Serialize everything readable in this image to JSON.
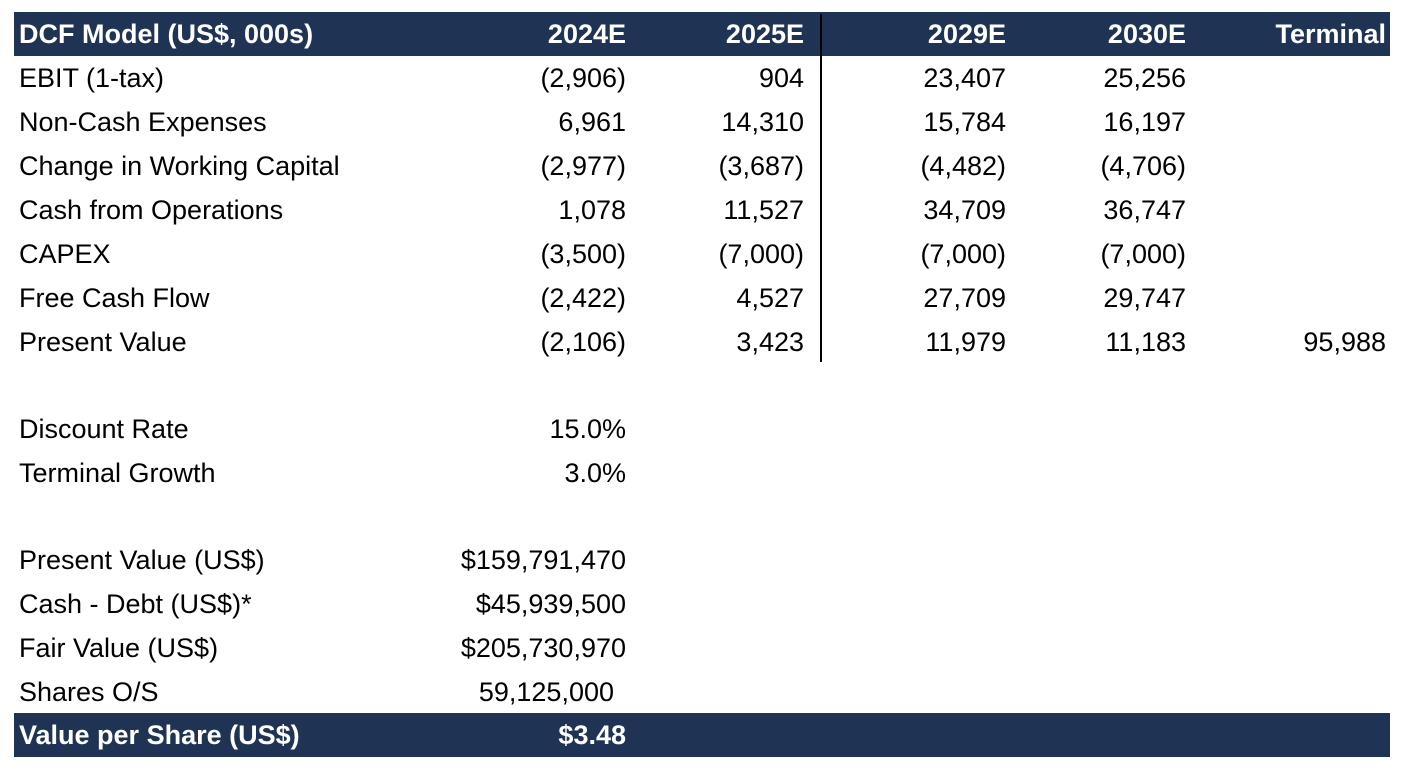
{
  "header": {
    "title": "DCF Model (US$, 000s)",
    "columns": [
      "2024E",
      "2025E",
      "2029E",
      "2030E",
      "Terminal"
    ]
  },
  "table": {
    "rows": [
      {
        "label": "EBIT (1-tax)",
        "values": [
          "(2,906)",
          "904",
          "23,407",
          "25,256",
          ""
        ]
      },
      {
        "label": "Non-Cash Expenses",
        "values": [
          "6,961",
          "14,310",
          "15,784",
          "16,197",
          ""
        ]
      },
      {
        "label": "Change in Working Capital",
        "values": [
          "(2,977)",
          "(3,687)",
          "(4,482)",
          "(4,706)",
          ""
        ]
      },
      {
        "label": "Cash from Operations",
        "values": [
          "1,078",
          "11,527",
          "34,709",
          "36,747",
          ""
        ]
      },
      {
        "label": "CAPEX",
        "values": [
          "(3,500)",
          "(7,000)",
          "(7,000)",
          "(7,000)",
          ""
        ]
      },
      {
        "label": "Free Cash Flow",
        "values": [
          "(2,422)",
          "4,527",
          "27,709",
          "29,747",
          ""
        ]
      },
      {
        "label": "Present Value",
        "values": [
          "(2,106)",
          "3,423",
          "11,979",
          "11,183",
          "95,988"
        ]
      }
    ]
  },
  "assumptions": [
    {
      "label": "Discount Rate",
      "value": "15.0%"
    },
    {
      "label": "Terminal Growth",
      "value": "3.0%"
    }
  ],
  "valuation": [
    {
      "label": "Present Value (US$)",
      "value": "$159,791,470"
    },
    {
      "label": "Cash - Debt (US$)*",
      "value": "$45,939,500"
    },
    {
      "label": "Fair Value (US$)",
      "value": "$205,730,970"
    },
    {
      "label": "Shares O/S",
      "value": "59,125,000"
    }
  ],
  "footer": {
    "label": "Value per Share (US$)",
    "value": "$3.48"
  },
  "colors": {
    "header_bg": "#1f3355",
    "header_text": "#ffffff"
  }
}
